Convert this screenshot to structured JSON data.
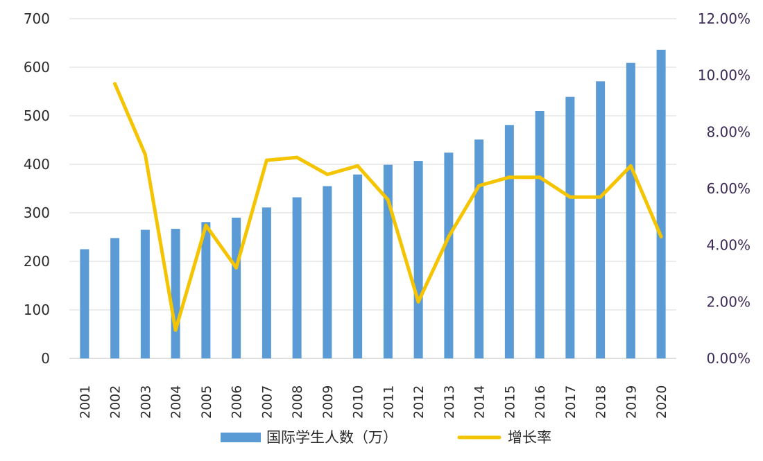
{
  "chart_data": {
    "type": "bar",
    "title": "",
    "xlabel": "",
    "ylabel": "",
    "categories": [
      "2001",
      "2002",
      "2003",
      "2004",
      "2005",
      "2006",
      "2007",
      "2008",
      "2009",
      "2010",
      "2011",
      "2012",
      "2013",
      "2014",
      "2015",
      "2016",
      "2017",
      "2018",
      "2019",
      "2020"
    ],
    "series": [
      {
        "name": "国际学生人数（万）",
        "type": "bar",
        "axis": "left",
        "color": "#5b9bd5",
        "values": [
          225,
          248,
          265,
          267,
          281,
          290,
          311,
          332,
          355,
          379,
          399,
          407,
          424,
          451,
          481,
          510,
          539,
          571,
          609,
          636
        ]
      },
      {
        "name": "增长率",
        "type": "line",
        "axis": "right",
        "color": "#f5c400",
        "values": [
          null,
          9.7,
          7.2,
          1.0,
          4.7,
          3.2,
          7.0,
          7.1,
          6.5,
          6.8,
          5.6,
          2.0,
          4.3,
          6.1,
          6.4,
          6.4,
          5.7,
          5.7,
          6.8,
          4.3
        ]
      }
    ],
    "y_left": {
      "ylim": [
        0,
        700
      ],
      "ticks": [
        "0",
        "100",
        "200",
        "300",
        "400",
        "500",
        "600",
        "700"
      ]
    },
    "y_right": {
      "ylim": [
        0,
        12
      ],
      "ticks": [
        "0.00%",
        "2.00%",
        "4.00%",
        "6.00%",
        "8.00%",
        "10.00%",
        "12.00%"
      ]
    },
    "grid": true,
    "legend_position": "bottom"
  }
}
